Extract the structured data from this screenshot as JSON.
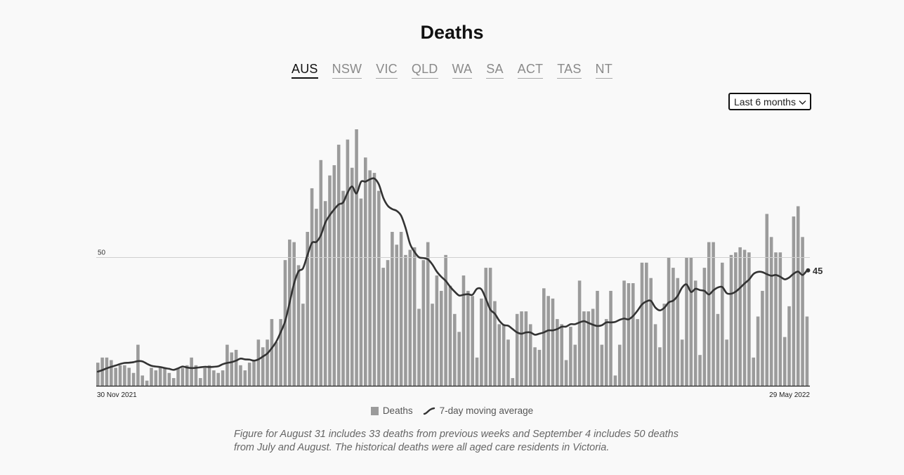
{
  "title": "Deaths",
  "tabs": [
    {
      "label": "AUS",
      "active": true
    },
    {
      "label": "NSW",
      "active": false
    },
    {
      "label": "VIC",
      "active": false
    },
    {
      "label": "QLD",
      "active": false
    },
    {
      "label": "WA",
      "active": false
    },
    {
      "label": "SA",
      "active": false
    },
    {
      "label": "ACT",
      "active": false
    },
    {
      "label": "TAS",
      "active": false
    },
    {
      "label": "NT",
      "active": false
    }
  ],
  "range_select": {
    "value": "Last 6 months"
  },
  "legend": {
    "bars": "Deaths",
    "line": "7-day moving average"
  },
  "note": "Figure for August 31 includes 33 deaths from previous weeks and September 4 includes 50 deaths from July and August. The historical deaths were all aged care residents in Victoria.",
  "colors": {
    "bars": "#9b9b9b",
    "line": "#333333",
    "gridline": "#d0d0d0",
    "axis": "#222222"
  },
  "chart_data": {
    "type": "bar",
    "x_start": "30 Nov 2021",
    "x_end": "29 May 2022",
    "x_tick_labels": [
      "30 Nov 2021",
      "29 May 2022"
    ],
    "y_tick_labels": [
      "50"
    ],
    "ylim": [
      0,
      100
    ],
    "grid": "single horizontal gridline at 50",
    "last_value_label": "45",
    "series": [
      {
        "name": "Deaths",
        "type": "bar",
        "values": [
          9,
          11,
          11,
          10,
          7,
          8,
          8,
          7,
          5,
          16,
          4,
          2,
          7,
          6,
          7,
          7,
          5,
          3,
          7,
          7,
          8,
          11,
          8,
          3,
          7,
          8,
          6,
          5,
          6,
          16,
          13,
          14,
          8,
          6,
          9,
          10,
          18,
          15,
          18,
          26,
          17,
          26,
          49,
          57,
          56,
          47,
          32,
          60,
          77,
          69,
          88,
          72,
          82,
          86,
          94,
          76,
          96,
          85,
          100,
          73,
          89,
          84,
          83,
          76,
          46,
          49,
          60,
          55,
          60,
          51,
          53,
          54,
          30,
          49,
          56,
          32,
          43,
          37,
          51,
          39,
          28,
          21,
          43,
          37,
          35,
          11,
          34,
          46,
          46,
          33,
          24,
          24,
          18,
          3,
          28,
          29,
          29,
          24,
          15,
          14,
          38,
          35,
          34,
          26,
          24,
          10,
          23,
          16,
          41,
          29,
          29,
          30,
          37,
          16,
          26,
          37,
          4,
          16,
          41,
          40,
          40,
          26,
          48,
          48,
          42,
          24,
          15,
          32,
          50,
          46,
          42,
          18,
          50,
          50,
          41,
          12,
          46,
          56,
          56,
          28,
          48,
          18,
          51,
          52,
          54,
          53,
          52,
          11,
          27,
          37,
          67,
          58,
          52,
          52,
          19,
          31,
          66,
          70,
          58,
          27
        ],
        "color": "#9b9b9b"
      },
      {
        "name": "7-day moving average",
        "type": "line",
        "values": [
          5.5,
          6.1,
          6.8,
          7.4,
          7.9,
          8.5,
          8.9,
          9,
          9.2,
          9.6,
          9.5,
          8.6,
          7.8,
          7.5,
          7.3,
          6.9,
          6.6,
          6.2,
          6.8,
          7.5,
          7.1,
          6.9,
          7,
          7.2,
          7.4,
          7.3,
          7.4,
          7.6,
          8.4,
          8.9,
          9.2,
          9.8,
          10.6,
          10.3,
          10.2,
          9.8,
          10.3,
          11.4,
          12.6,
          14.7,
          17.2,
          20.9,
          25.2,
          32.4,
          39.9,
          44.6,
          45.8,
          51,
          55.7,
          56.1,
          58.7,
          63.6,
          66.5,
          68.8,
          70.7,
          71.5,
          75.3,
          77.7,
          75,
          79.5,
          79.6,
          80.5,
          80.8,
          78.5,
          73.3,
          70.2,
          68.9,
          68.2,
          66.3,
          61.5,
          55.3,
          52.2,
          50.1,
          49.8,
          49.3,
          47.3,
          44.5,
          42.5,
          40.9,
          38.6,
          36.7,
          35.2,
          35.5,
          35.7,
          35.5,
          37.8,
          37.6,
          33.9,
          29.7,
          28.1,
          25.4,
          23.7,
          23.4,
          22.1,
          20.8,
          20.3,
          20.8,
          20.8,
          19.9,
          20.3,
          20.8,
          21.6,
          21.6,
          22.1,
          23,
          23.1,
          24,
          24,
          24.7,
          25.2,
          24.5,
          23.8,
          23.3,
          23.6,
          24.7,
          24.7,
          24.9,
          25.7,
          26.2,
          25.9,
          27.2,
          29.3,
          31.7,
          32.9,
          33.1,
          30.5,
          29.4,
          30.4,
          32.5,
          33.2,
          35.1,
          38.3,
          39.5,
          36.6,
          37.8,
          37.3,
          37,
          35.6,
          37.2,
          38.3,
          38.5,
          36.1,
          35.9,
          36.7,
          38.2,
          39.9,
          41.4,
          43.6,
          44.4,
          44.3,
          43.5,
          42.9,
          43.2,
          42.5,
          41.5,
          42.2,
          43.7,
          44.5,
          43.2,
          45
        ],
        "color": "#333333"
      }
    ]
  }
}
